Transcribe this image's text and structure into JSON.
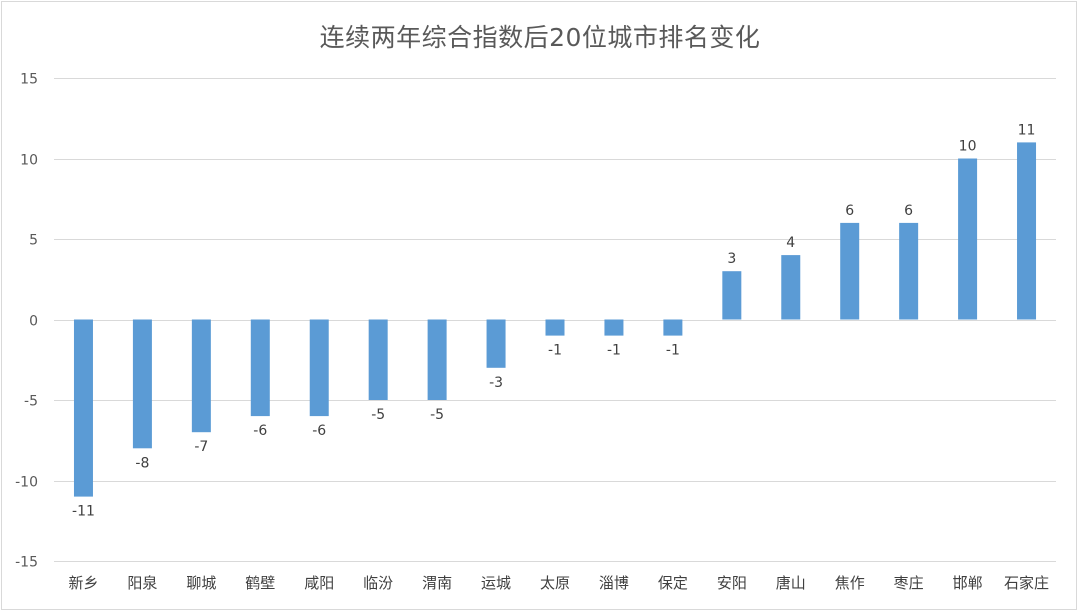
{
  "chart_data": {
    "type": "bar",
    "title": "连续两年综合指数后20位城市排名变化",
    "xlabel": "",
    "ylabel": "",
    "ylim": [
      -15,
      15
    ],
    "yticks": [
      15,
      10,
      5,
      0,
      -5,
      -10,
      -15
    ],
    "grid": true,
    "legend": "none",
    "bar_color": "#5b9bd5",
    "categories": [
      "新乡",
      "阳泉",
      "聊城",
      "鹤壁",
      "咸阳",
      "临汾",
      "渭南",
      "运城",
      "太原",
      "淄博",
      "保定",
      "安阳",
      "唐山",
      "焦作",
      "枣庄",
      "邯郸",
      "石家庄"
    ],
    "values": [
      -11,
      -8,
      -7,
      -6,
      -6,
      -5,
      -5,
      -3,
      -1,
      -1,
      -1,
      3,
      4,
      6,
      6,
      10,
      11
    ]
  }
}
